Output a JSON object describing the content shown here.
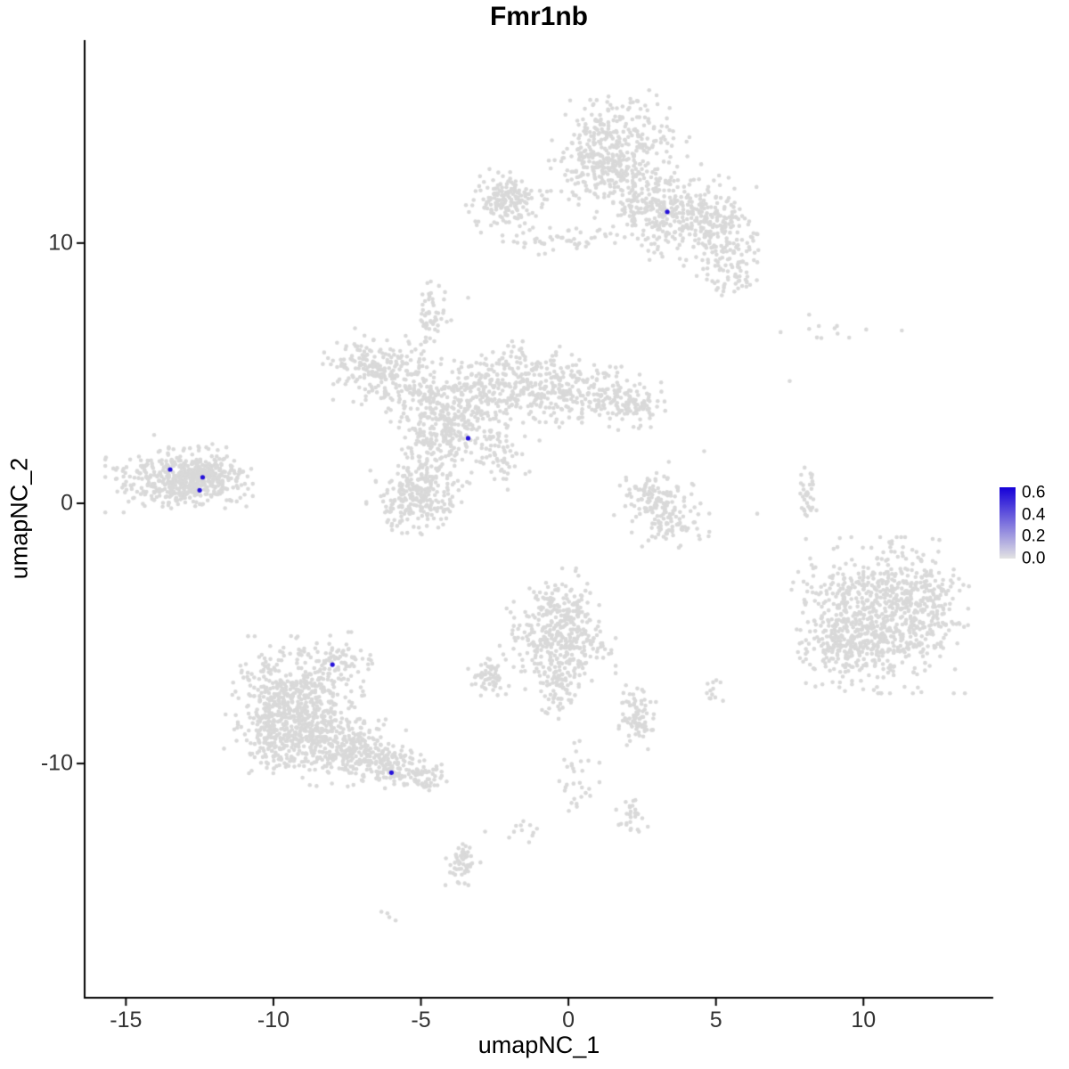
{
  "chart_data": {
    "type": "scatter",
    "title": "Fmr1nb",
    "xlabel": "umapNC_1",
    "ylabel": "umapNC_2",
    "x_domain": [
      -16.4,
      14.4
    ],
    "y_domain": [
      -19.0,
      17.8
    ],
    "grid": false,
    "legend_position": "right",
    "x_ticks": [
      {
        "value": -15,
        "label": "-15"
      },
      {
        "value": -10,
        "label": "-10"
      },
      {
        "value": -5,
        "label": "-5"
      },
      {
        "value": 0,
        "label": "0"
      },
      {
        "value": 5,
        "label": "5"
      },
      {
        "value": 10,
        "label": "10"
      }
    ],
    "y_ticks": [
      {
        "value": 10,
        "label": "10"
      },
      {
        "value": 0,
        "label": "0"
      },
      {
        "value": -10,
        "label": "-10"
      }
    ],
    "point_color": "#d9d9d9",
    "seed": 42,
    "background_cell_clusters": [
      {
        "name": "top-core",
        "cx": 1.6,
        "cy": 14.0,
        "sx": 1.0,
        "sy": 0.75,
        "n": 260
      },
      {
        "name": "top-lower",
        "cx": 1.0,
        "cy": 12.7,
        "sx": 0.75,
        "sy": 0.6,
        "n": 130
      },
      {
        "name": "top-stream",
        "cx": 2.5,
        "cy": 11.7,
        "sx": 0.8,
        "sy": 0.8,
        "n": 170
      },
      {
        "name": "top-right-arm",
        "cx": 4.0,
        "cy": 11.0,
        "sx": 0.95,
        "sy": 0.75,
        "n": 230
      },
      {
        "name": "top-right-tip",
        "cx": 5.2,
        "cy": 10.1,
        "sx": 0.6,
        "sy": 0.8,
        "n": 130
      },
      {
        "name": "top-right-tail",
        "cx": 5.7,
        "cy": 8.8,
        "sx": 0.35,
        "sy": 0.45,
        "n": 35
      },
      {
        "name": "top-left-block",
        "cx": -2.1,
        "cy": 11.6,
        "sx": 0.55,
        "sy": 0.5,
        "n": 170
      },
      {
        "name": "top-bridge",
        "cx": -0.4,
        "cy": 10.1,
        "sx": 1.1,
        "sy": 0.22,
        "n": 50
      },
      {
        "name": "central-nw-arm",
        "cx": -6.7,
        "cy": 5.3,
        "sx": 0.65,
        "sy": 0.6,
        "n": 150
      },
      {
        "name": "central-nw-inner",
        "cx": -5.6,
        "cy": 4.6,
        "sx": 0.6,
        "sy": 0.55,
        "n": 110
      },
      {
        "name": "central-core",
        "cx": -3.9,
        "cy": 3.4,
        "sx": 0.85,
        "sy": 0.75,
        "n": 320
      },
      {
        "name": "central-upper",
        "cx": -2.2,
        "cy": 4.6,
        "sx": 0.85,
        "sy": 0.65,
        "n": 200
      },
      {
        "name": "central-e-arm",
        "cx": -0.4,
        "cy": 4.4,
        "sx": 0.9,
        "sy": 0.65,
        "n": 190
      },
      {
        "name": "central-e-arm2",
        "cx": 1.4,
        "cy": 4.0,
        "sx": 0.7,
        "sy": 0.5,
        "n": 110
      },
      {
        "name": "central-e-tip",
        "cx": 2.5,
        "cy": 3.8,
        "sx": 0.4,
        "sy": 0.35,
        "n": 45
      },
      {
        "name": "central-lower-lobe",
        "cx": -5.1,
        "cy": 0.3,
        "sx": 0.7,
        "sy": 0.6,
        "n": 260
      },
      {
        "name": "central-neck",
        "cx": -4.6,
        "cy": 2.1,
        "sx": 0.5,
        "sy": 0.7,
        "n": 80
      },
      {
        "name": "central-top-knob",
        "cx": -4.6,
        "cy": 7.4,
        "sx": 0.25,
        "sy": 0.45,
        "n": 40
      },
      {
        "name": "central-top-stream",
        "cx": -4.8,
        "cy": 6.3,
        "sx": 0.18,
        "sy": 0.5,
        "n": 20
      },
      {
        "name": "central-se-tail",
        "cx": -2.3,
        "cy": 1.9,
        "sx": 0.55,
        "sy": 0.55,
        "n": 55
      },
      {
        "name": "left-cluster",
        "cx": -13.2,
        "cy": 0.9,
        "sx": 1.0,
        "sy": 0.5,
        "n": 430
      },
      {
        "name": "left-cluster-dense",
        "cx": -12.2,
        "cy": 1.0,
        "sx": 0.55,
        "sy": 0.35,
        "n": 160
      },
      {
        "name": "left-cluster-top",
        "cx": -13.0,
        "cy": 2.0,
        "sx": 0.6,
        "sy": 0.25,
        "n": 18
      },
      {
        "name": "mid-right-crescent-a",
        "cx": 2.7,
        "cy": 0.4,
        "sx": 0.5,
        "sy": 0.5,
        "n": 85
      },
      {
        "name": "mid-right-crescent-b",
        "cx": 3.4,
        "cy": -0.5,
        "sx": 0.55,
        "sy": 0.5,
        "n": 100
      },
      {
        "name": "right-sparse-band",
        "cx": 8.8,
        "cy": 6.6,
        "sx": 1.0,
        "sy": 0.3,
        "n": 12
      },
      {
        "name": "right-small-arc",
        "cx": 8.1,
        "cy": 0.4,
        "sx": 0.16,
        "sy": 0.55,
        "n": 32
      },
      {
        "name": "right-big-core",
        "cx": 10.8,
        "cy": -4.3,
        "sx": 1.1,
        "sy": 1.2,
        "n": 620
      },
      {
        "name": "right-big-sw",
        "cx": 9.4,
        "cy": -5.6,
        "sx": 0.75,
        "sy": 0.75,
        "n": 180
      },
      {
        "name": "right-big-ne",
        "cx": 12.2,
        "cy": -3.4,
        "sx": 0.55,
        "sy": 0.8,
        "n": 110
      },
      {
        "name": "right-big-w-edge",
        "cx": 8.7,
        "cy": -3.5,
        "sx": 0.5,
        "sy": 0.7,
        "n": 55
      },
      {
        "name": "bottomleft-core",
        "cx": -9.3,
        "cy": -7.6,
        "sx": 0.95,
        "sy": 1.0,
        "n": 520
      },
      {
        "name": "bottomleft-lower",
        "cx": -8.3,
        "cy": -9.2,
        "sx": 0.9,
        "sy": 0.65,
        "n": 280
      },
      {
        "name": "bottomleft-sw",
        "cx": -10.0,
        "cy": -9.0,
        "sx": 0.5,
        "sy": 0.55,
        "n": 110
      },
      {
        "name": "bottomleft-tail",
        "cx": -7.0,
        "cy": -9.7,
        "sx": 0.7,
        "sy": 0.5,
        "n": 150
      },
      {
        "name": "bottomleft-tail-tip",
        "cx": -5.8,
        "cy": -10.2,
        "sx": 0.6,
        "sy": 0.35,
        "n": 110
      },
      {
        "name": "bottomleft-top-spur",
        "cx": -7.9,
        "cy": -6.1,
        "sx": 0.5,
        "sy": 0.5,
        "n": 80
      },
      {
        "name": "bottomleft-end-bits",
        "cx": -4.8,
        "cy": -10.6,
        "sx": 0.3,
        "sy": 0.25,
        "n": 35
      },
      {
        "name": "center-bottom-top",
        "cx": -0.2,
        "cy": -4.0,
        "sx": 0.55,
        "sy": 0.6,
        "n": 120
      },
      {
        "name": "center-bottom-core",
        "cx": -0.4,
        "cy": -5.5,
        "sx": 0.8,
        "sy": 0.75,
        "n": 290
      },
      {
        "name": "center-bottom-tail",
        "cx": -0.4,
        "cy": -7.2,
        "sx": 0.3,
        "sy": 0.45,
        "n": 55
      },
      {
        "name": "small-left-satellite",
        "cx": -2.7,
        "cy": -6.7,
        "sx": 0.28,
        "sy": 0.3,
        "n": 55
      },
      {
        "name": "small-right-satellite",
        "cx": 2.3,
        "cy": -8.2,
        "sx": 0.3,
        "sy": 0.5,
        "n": 85
      },
      {
        "name": "tiny-right-blob",
        "cx": 4.9,
        "cy": -7.3,
        "sx": 0.18,
        "sy": 0.2,
        "n": 12
      },
      {
        "name": "bottom-trail-a",
        "cx": 0.3,
        "cy": -10.5,
        "sx": 0.3,
        "sy": 0.8,
        "n": 30
      },
      {
        "name": "bottom-trail-b",
        "cx": 2.2,
        "cy": -12.1,
        "sx": 0.25,
        "sy": 0.35,
        "n": 28
      },
      {
        "name": "bottom-blob",
        "cx": -3.6,
        "cy": -13.8,
        "sx": 0.3,
        "sy": 0.35,
        "n": 55
      },
      {
        "name": "bottom-sparse",
        "cx": -1.7,
        "cy": -12.7,
        "sx": 0.45,
        "sy": 0.3,
        "n": 12
      },
      {
        "name": "bottom-isolated",
        "cx": -6.1,
        "cy": -15.9,
        "sx": 0.15,
        "sy": 0.12,
        "n": 4
      }
    ],
    "single_points": [
      [
        -3.4,
        7.9
      ],
      [
        7.5,
        4.7
      ],
      [
        4.6,
        2.0
      ],
      [
        6.4,
        -0.4
      ]
    ],
    "expressing_cells": [
      {
        "x": 3.35,
        "y": 11.2,
        "value": 0.6
      },
      {
        "x": -3.4,
        "y": 2.5,
        "value": 0.6
      },
      {
        "x": -13.5,
        "y": 1.3,
        "value": 0.6
      },
      {
        "x": -12.4,
        "y": 1.0,
        "value": 0.6
      },
      {
        "x": -12.5,
        "y": 0.5,
        "value": 0.6
      },
      {
        "x": -8.0,
        "y": -6.2,
        "value": 0.6
      },
      {
        "x": -6.0,
        "y": -10.35,
        "value": 0.6
      }
    ],
    "legend": {
      "max_value": 0.65,
      "gradient_top": "#1500d8",
      "gradient_bottom": "#e3e3e3",
      "ticks": [
        {
          "value": 0.6,
          "label": "0.6"
        },
        {
          "value": 0.4,
          "label": "0.4"
        },
        {
          "value": 0.2,
          "label": "0.2"
        },
        {
          "value": 0.0,
          "label": "0.0"
        }
      ]
    }
  }
}
